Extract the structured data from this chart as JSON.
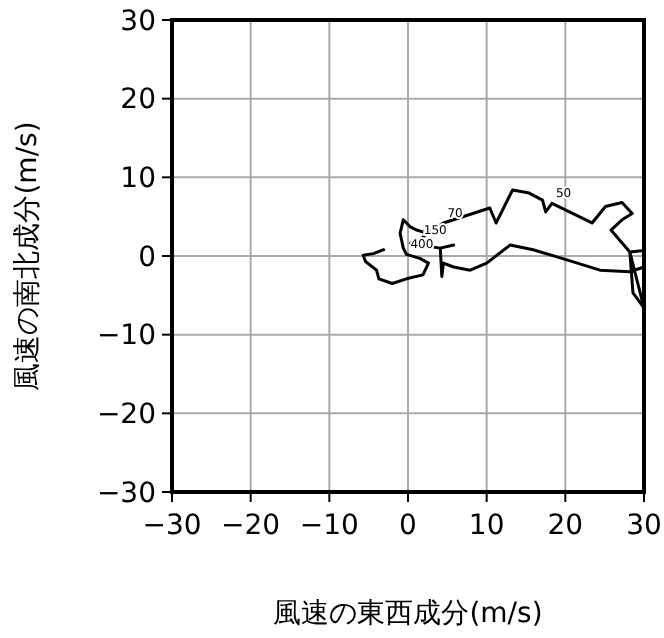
{
  "chart_data": {
    "type": "line",
    "xlabel": "風速の東西成分(m/s)",
    "ylabel": "風速の南北成分(m/s)",
    "xlim": [
      -30,
      30
    ],
    "ylim": [
      -30,
      30
    ],
    "xticks": [
      -30,
      -20,
      -10,
      0,
      10,
      20,
      30
    ],
    "yticks": [
      -30,
      -20,
      -10,
      0,
      10,
      20,
      30
    ],
    "grid": true,
    "line_style": "solid",
    "series": [
      {
        "color": "#000000",
        "x": [
          -3.1,
          -4.4,
          -5.7,
          -5.4,
          -4.0,
          -3.7,
          -2.0,
          -0.2,
          1.9,
          2.6,
          1.5,
          -0.2,
          -0.6,
          -1.0,
          -0.6,
          0.3,
          1.1,
          2.4,
          1.5,
          0.3,
          4.1,
          5.8,
          4.1,
          4.3,
          4.5,
          5.8,
          7.9,
          10,
          13,
          15.9,
          20.2,
          24.4,
          28.2,
          30,
          30,
          28.2,
          28.6,
          30,
          28.2,
          25.8,
          27.2,
          28.5,
          27.2,
          25.1,
          23.4,
          18.3,
          17.5,
          17.1,
          15.4,
          13.3,
          11.2,
          10.4,
          4.5,
          2.4
        ],
        "values": [
          0.8,
          0.3,
          0.1,
          -0.7,
          -1.8,
          -2.9,
          -3.5,
          -2.9,
          -2.4,
          -0.9,
          -0.3,
          0.2,
          1.0,
          2.9,
          4.6,
          3.7,
          3.3,
          2.9,
          2.0,
          1.6,
          1.0,
          1.4,
          1.0,
          -2.6,
          -0.9,
          -1.4,
          -1.8,
          -0.9,
          1.4,
          0.8,
          -0.5,
          -1.8,
          -2.0,
          -1.4,
          0.7,
          0.5,
          -4.7,
          -6.6,
          0.5,
          3.3,
          4.6,
          5.4,
          6.8,
          6.3,
          4.2,
          6.7,
          5.6,
          7.1,
          8.0,
          8.4,
          4.2,
          6.1,
          4.2,
          2.9
        ]
      }
    ],
    "annotations": [
      {
        "text": "50",
        "x": 18.3,
        "y": 6.7
      },
      {
        "text": "70",
        "x": 4.5,
        "y": 4.2
      },
      {
        "text": "150",
        "x": 1.5,
        "y": 2.0
      },
      {
        "text": "400",
        "x": -0.2,
        "y": 0.2
      }
    ]
  }
}
